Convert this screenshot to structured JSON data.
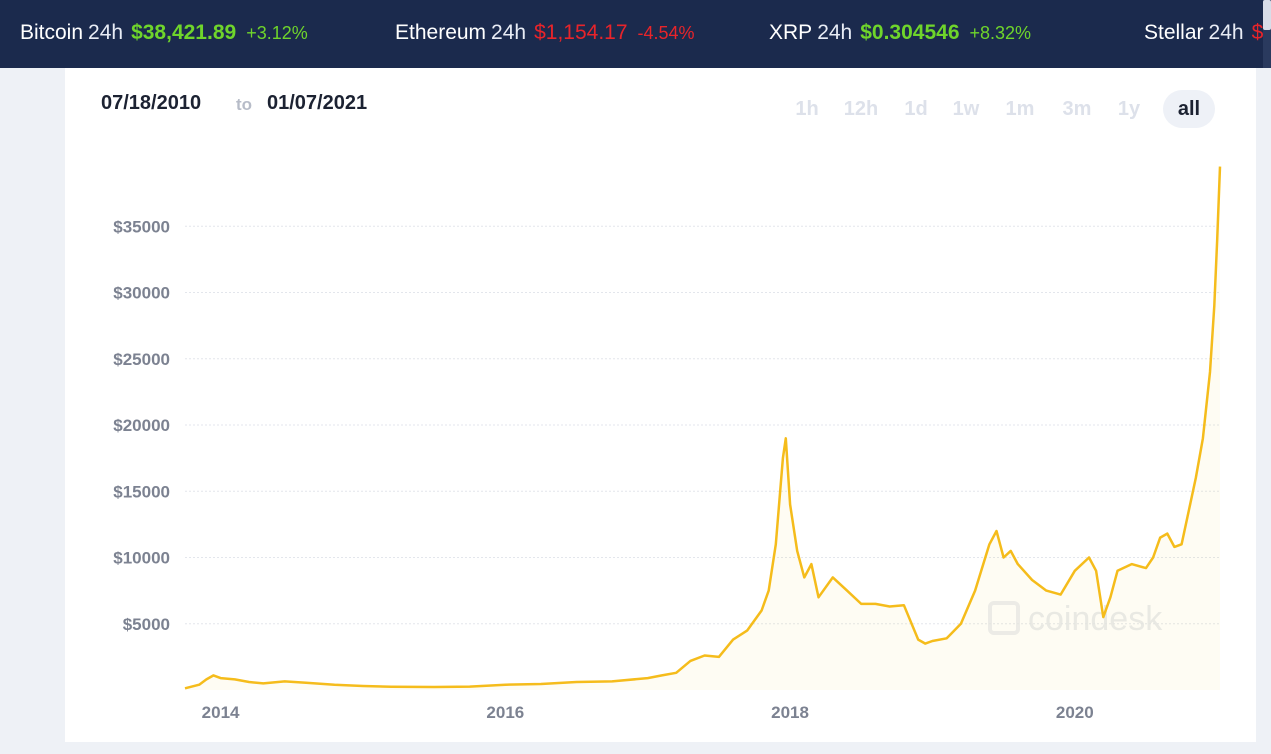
{
  "ticker": [
    {
      "name": "Bitcoin",
      "period": "24h",
      "price": "$38,421.89",
      "change": "+3.12%",
      "direction": "up"
    },
    {
      "name": "Ethereum",
      "period": "24h",
      "price": "$1,154.17",
      "change": "-4.54%",
      "direction": "down"
    },
    {
      "name": "XRP",
      "period": "24h",
      "price": "$0.304546",
      "change": "+8.32%",
      "direction": "up"
    },
    {
      "name": "Stellar",
      "period": "24h",
      "price": "$",
      "change": "",
      "direction": "down"
    }
  ],
  "range": {
    "start": "07/18/2010",
    "separator": "to",
    "end": "01/07/2021"
  },
  "period_tabs": [
    {
      "label": "1h",
      "active": false
    },
    {
      "label": "12h",
      "active": false
    },
    {
      "label": "1d",
      "active": false
    },
    {
      "label": "1w",
      "active": false
    },
    {
      "label": "1m",
      "active": false
    },
    {
      "label": "3m",
      "active": false
    },
    {
      "label": "1y",
      "active": false
    },
    {
      "label": "all",
      "active": true
    }
  ],
  "watermark": "coindesk",
  "colors": {
    "line": "#f5bc1b",
    "up": "#6fd52b",
    "down": "#e8242a",
    "header_bg": "#1b2a4d"
  },
  "chart_data": {
    "type": "line",
    "title": "",
    "xlabel": "",
    "ylabel": "",
    "x_ticks": [
      "2014",
      "2016",
      "2018",
      "2020"
    ],
    "y_ticks": [
      "$5000",
      "$10000",
      "$15000",
      "$20000",
      "$25000",
      "$30000",
      "$35000"
    ],
    "y_tick_values": [
      5000,
      10000,
      15000,
      20000,
      25000,
      30000,
      35000
    ],
    "ylim": [
      0,
      40000
    ],
    "xlim": [
      2013.75,
      2021.02
    ],
    "grid": true,
    "series": [
      {
        "name": "",
        "x": [
          2013.75,
          2013.85,
          2013.9,
          2013.95,
          2014.0,
          2014.1,
          2014.2,
          2014.3,
          2014.45,
          2014.6,
          2014.8,
          2015.0,
          2015.2,
          2015.5,
          2015.75,
          2016.0,
          2016.25,
          2016.5,
          2016.75,
          2017.0,
          2017.1,
          2017.2,
          2017.3,
          2017.4,
          2017.5,
          2017.6,
          2017.7,
          2017.8,
          2017.85,
          2017.9,
          2017.95,
          2017.97,
          2018.0,
          2018.05,
          2018.1,
          2018.15,
          2018.2,
          2018.3,
          2018.4,
          2018.5,
          2018.6,
          2018.7,
          2018.8,
          2018.9,
          2018.95,
          2019.0,
          2019.1,
          2019.2,
          2019.3,
          2019.4,
          2019.45,
          2019.5,
          2019.55,
          2019.6,
          2019.7,
          2019.8,
          2019.9,
          2020.0,
          2020.1,
          2020.15,
          2020.2,
          2020.25,
          2020.3,
          2020.4,
          2020.5,
          2020.55,
          2020.6,
          2020.65,
          2020.7,
          2020.75,
          2020.8,
          2020.85,
          2020.9,
          2020.95,
          2020.98,
          2021.0,
          2021.02
        ],
        "values": [
          130,
          400,
          800,
          1100,
          900,
          800,
          600,
          500,
          650,
          550,
          400,
          300,
          250,
          230,
          260,
          400,
          450,
          600,
          650,
          900,
          1100,
          1300,
          2200,
          2600,
          2500,
          3800,
          4500,
          6000,
          7500,
          11000,
          17500,
          19000,
          14000,
          10500,
          8500,
          9500,
          7000,
          8500,
          7500,
          6500,
          6500,
          6300,
          6400,
          3800,
          3500,
          3700,
          3900,
          5000,
          7500,
          11000,
          12000,
          10000,
          10500,
          9500,
          8300,
          7500,
          7200,
          9000,
          10000,
          9000,
          5500,
          7000,
          9000,
          9500,
          9200,
          10000,
          11500,
          11800,
          10800,
          11000,
          13500,
          16000,
          19000,
          24000,
          29000,
          34000,
          39500
        ]
      }
    ]
  }
}
